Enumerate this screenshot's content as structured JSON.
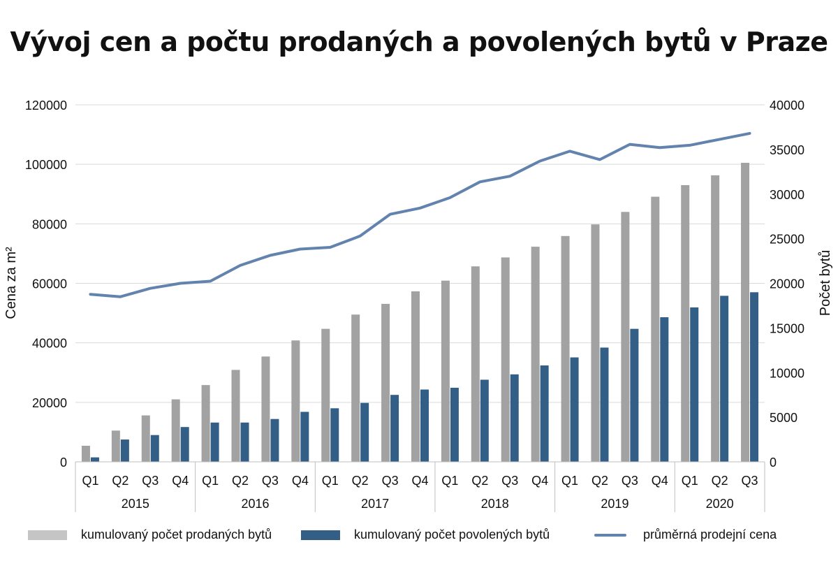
{
  "title": "Vývoj cen a počtu prodaných a povolených bytů v Praze",
  "chart_data": {
    "type": "bar",
    "title": "Vývoj cen a počtu prodaných a povolených bytů v Praze",
    "categories": [
      "Q1",
      "Q2",
      "Q3",
      "Q4",
      "Q1",
      "Q2",
      "Q3",
      "Q4",
      "Q1",
      "Q2",
      "Q3",
      "Q4",
      "Q1",
      "Q2",
      "Q3",
      "Q4",
      "Q1",
      "Q2",
      "Q3",
      "Q4",
      "Q1",
      "Q2",
      "Q3"
    ],
    "years": [
      "2015",
      "2016",
      "2017",
      "2018",
      "2019",
      "2020"
    ],
    "year_spans": [
      4,
      4,
      4,
      4,
      4,
      3
    ],
    "y_left_label": "Cena za m²",
    "y_right_label": "Počet bytů",
    "y_left_lim": [
      0,
      120000
    ],
    "y_right_lim": [
      0,
      40000
    ],
    "y_left_ticks": [
      "0",
      "20000",
      "40000",
      "60000",
      "80000",
      "100000",
      "120000"
    ],
    "y_right_ticks": [
      "0",
      "5000",
      "10000",
      "15000",
      "20000",
      "25000",
      "30000",
      "35000",
      "40000"
    ],
    "grid": true,
    "legend_position": "bottom",
    "series": [
      {
        "name": "kumulovaný počet prodaných bytů",
        "type": "bar",
        "axis": "right",
        "color": "#a2a2a2",
        "legend_color": "#c5c5c5",
        "values": [
          1800,
          3500,
          5200,
          7000,
          8600,
          10300,
          11800,
          13600,
          14900,
          16500,
          17700,
          19100,
          20300,
          21900,
          22900,
          24100,
          25300,
          26600,
          28000,
          29700,
          31000,
          32100,
          33500
        ]
      },
      {
        "name": "kumulovaný počet povolených bytů",
        "type": "bar",
        "axis": "right",
        "color": "#335f87",
        "values": [
          500,
          2500,
          3000,
          3900,
          4400,
          4400,
          4800,
          5600,
          6000,
          6600,
          7500,
          8100,
          8300,
          9200,
          9800,
          10800,
          11700,
          12800,
          14900,
          16200,
          17300,
          18600,
          19000
        ]
      },
      {
        "name": "průměrná prodejní cena",
        "type": "line",
        "axis": "left",
        "color": "#6283ad",
        "values": [
          56300,
          55500,
          58300,
          60000,
          60700,
          66000,
          69400,
          71500,
          72100,
          75900,
          83200,
          85300,
          88800,
          94100,
          96000,
          101100,
          104400,
          101600,
          106700,
          105600,
          106400,
          108400,
          110400
        ]
      }
    ]
  }
}
